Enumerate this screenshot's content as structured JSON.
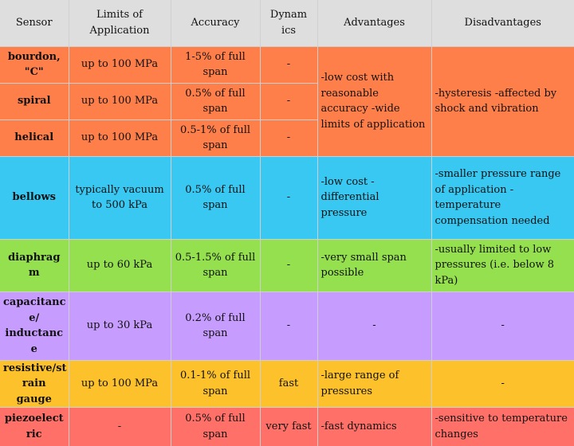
{
  "headers": {
    "sensor": "Sensor",
    "limits": "Limits of Application",
    "accuracy": "Accuracy",
    "dynamics": "Dynam ics",
    "advantages": "Advantages",
    "disadvantages": "Disadvantages"
  },
  "rows": [
    {
      "sensor": "bourdon, \"C\"",
      "limits": "up to 100 MPa",
      "accuracy": "1-5% of full span",
      "dynamics": "-"
    },
    {
      "sensor": "spiral",
      "limits": "up to 100 MPa",
      "accuracy": "0.5% of full span",
      "dynamics": "-"
    },
    {
      "sensor": "helical",
      "limits": "up to 100 MPa",
      "accuracy": "0.5-1% of full span",
      "dynamics": "-"
    },
    {
      "sensor": "bellows",
      "limits": "typically vacuum to 500 kPa",
      "accuracy": "0.5% of full span",
      "dynamics": "-",
      "advantages": "-low cost -differential pressure",
      "disadvantages": "-smaller pressure range of application -temperature compensation needed"
    },
    {
      "sensor": "diaphrag m",
      "limits": "up to 60 kPa",
      "accuracy": "0.5-1.5% of full span",
      "dynamics": "-",
      "advantages": "-very small span possible",
      "disadvantages": "-usually limited to low pressures (i.e. below 8 kPa)"
    },
    {
      "sensor": "capacitanc e/ inductanc e",
      "limits": "up to 30 kPa",
      "accuracy": "0.2% of full span",
      "dynamics": "-",
      "advantages": "-",
      "disadvantages": "-"
    },
    {
      "sensor": "resistive/st rain gauge",
      "limits": "up to 100 MPa",
      "accuracy": "0.1-1% of full span",
      "dynamics": "fast",
      "advantages": "-large range of pressures",
      "disadvantages": "-"
    },
    {
      "sensor": "piezoelect ric",
      "limits": "-",
      "accuracy": "0.5% of full span",
      "dynamics": "very fast",
      "advantages": "-fast dynamics",
      "disadvantages": "-sensitive to temperature changes"
    }
  ],
  "bourdon_group": {
    "advantages": "-low cost with reasonable accuracy -wide limits of application",
    "disadvantages": "-hysteresis -affected by shock and vibration"
  },
  "colors": {
    "header": "#dedede",
    "bourdon": "#ff7f4b",
    "bellows": "#39c8f2",
    "diaphragm": "#94e04f",
    "capacitance": "#c79cff",
    "resistive": "#fdc22b",
    "piezoelectric": "#ff7068"
  }
}
